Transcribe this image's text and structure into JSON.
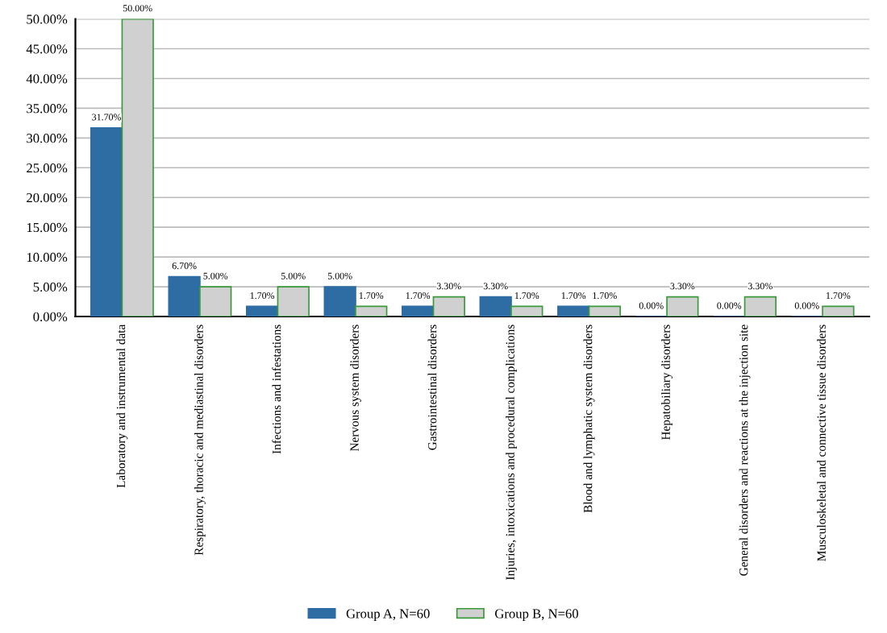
{
  "chart_data": {
    "type": "bar",
    "categories": [
      "Laboratory and instrumental data",
      "Respiratory, thoracic and mediastinal disorders",
      "Infections and infestations",
      "Nervous system disorders",
      "Gastrointestinal disorders",
      "Injuries, intoxications and procedural complications",
      "Blood and lymphatic system disorders",
      "Hepatobiliary disorders",
      "General disorders and reactions at the injection site",
      "Musculoskeletal and connective tissue disorders"
    ],
    "series": [
      {
        "name": "Group A, N=60",
        "color": "#2e6ca4",
        "values": [
          31.7,
          6.7,
          1.7,
          5.0,
          1.7,
          3.3,
          1.7,
          0.0,
          0.0,
          0.0
        ],
        "value_labels": [
          "31.70%",
          "6.70%",
          "1.70%",
          "5.00%",
          "1.70%",
          "3.30%",
          "1.70%",
          "0.00%",
          "0.00%",
          "0.00%"
        ]
      },
      {
        "name": "Group B, N=60",
        "color": "#d0d0d0",
        "values": [
          50.0,
          5.0,
          5.0,
          1.7,
          3.3,
          1.7,
          1.7,
          3.3,
          3.3,
          1.7
        ],
        "value_labels": [
          "50.00%",
          "5.00%",
          "5.00%",
          "1.70%",
          "3.30%",
          "1.70%",
          "1.70%",
          "3.30%",
          "3.30%",
          "1.70%"
        ]
      }
    ],
    "ylim": [
      0,
      50
    ],
    "yticks": [
      {
        "value": 0,
        "label": "0.00%"
      },
      {
        "value": 5,
        "label": "5.00%"
      },
      {
        "value": 10,
        "label": "10.00%"
      },
      {
        "value": 15,
        "label": "15.00%"
      },
      {
        "value": 20,
        "label": "20.00%"
      },
      {
        "value": 25,
        "label": "25.00%"
      },
      {
        "value": 30,
        "label": "30.00%"
      },
      {
        "value": 35,
        "label": "35.00%"
      },
      {
        "value": 40,
        "label": "40.00%"
      },
      {
        "value": 45,
        "label": "45.00%"
      },
      {
        "value": 50,
        "label": "50.00%"
      }
    ],
    "grid": "y",
    "legend": "bottom"
  }
}
